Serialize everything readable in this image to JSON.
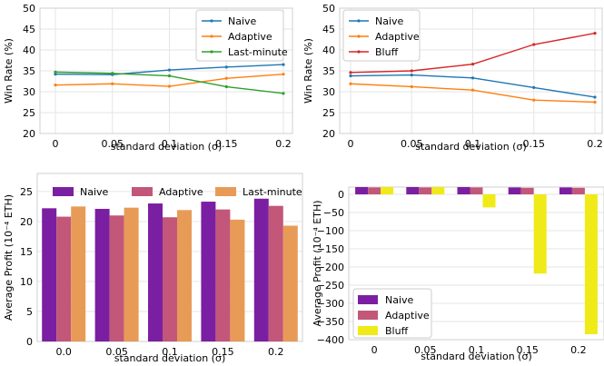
{
  "chart_data": [
    {
      "type": "line",
      "x": [
        "0",
        "0.05",
        "0.1",
        "0.15",
        "0.2"
      ],
      "xlabel": "standard deviation (σ)",
      "ylabel": "Win Rate (%)",
      "ylim": [
        20,
        50
      ],
      "yticks": [
        "20",
        "25",
        "30",
        "35",
        "40",
        "45",
        "50"
      ],
      "grid": true,
      "legend": "top-right",
      "series": [
        {
          "name": "Naive",
          "color": "#1f77b4",
          "values": [
            34.2,
            34.1,
            35.2,
            35.9,
            36.5
          ]
        },
        {
          "name": "Adaptive",
          "color": "#ff7f0e",
          "values": [
            31.6,
            31.9,
            31.3,
            33.2,
            34.2
          ]
        },
        {
          "name": "Last-minute",
          "color": "#2ca02c",
          "values": [
            34.7,
            34.4,
            33.8,
            31.2,
            29.6
          ]
        }
      ]
    },
    {
      "type": "line",
      "x": [
        "0",
        "0.05",
        "0.1",
        "0.15",
        "0.2"
      ],
      "xlabel": "standard deviation (σ)",
      "ylabel": "Win Rate (%)",
      "ylim": [
        20,
        50
      ],
      "yticks": [
        "20",
        "25",
        "30",
        "35",
        "40",
        "45",
        "50"
      ],
      "grid": true,
      "legend": "top-left",
      "series": [
        {
          "name": "Naive",
          "color": "#1f77b4",
          "values": [
            33.8,
            34.0,
            33.3,
            31.0,
            28.7
          ]
        },
        {
          "name": "Adaptive",
          "color": "#ff7f0e",
          "values": [
            31.9,
            31.2,
            30.4,
            28.0,
            27.5
          ]
        },
        {
          "name": "Bluff",
          "color": "#d62728",
          "values": [
            34.6,
            35.0,
            36.6,
            41.3,
            44.0
          ]
        }
      ]
    },
    {
      "type": "bar",
      "categories": [
        "0.0",
        "0.05",
        "0.1",
        "0.15",
        "0.2"
      ],
      "xlabel": "standard deviation (σ)",
      "ylabel": "Average Profit (10⁻⁴ ETH)",
      "ylim": [
        0,
        28
      ],
      "yticks": [
        "0",
        "5",
        "10",
        "15",
        "20",
        "25"
      ],
      "grid": true,
      "legend": "top",
      "series": [
        {
          "name": "Naive",
          "color": "#7b1fa2",
          "values": [
            22.2,
            22.1,
            23.0,
            23.3,
            23.8
          ]
        },
        {
          "name": "Adaptive",
          "color": "#c2577a",
          "values": [
            20.8,
            21.0,
            20.7,
            22.0,
            22.6
          ]
        },
        {
          "name": "Last-minute",
          "color": "#e89b57",
          "values": [
            22.5,
            22.3,
            21.9,
            20.3,
            19.3
          ]
        }
      ]
    },
    {
      "type": "bar",
      "categories": [
        "0",
        "0.05",
        "0.1",
        "0.15",
        "0.2"
      ],
      "xlabel": "standard deviation (σ)",
      "ylabel": "Average Profit (10⁻⁴ ETH)",
      "ylim": [
        -400,
        20
      ],
      "yticks": [
        "0",
        "−50",
        "−100",
        "−150",
        "−200",
        "−250",
        "−300",
        "−350",
        "−400"
      ],
      "grid": true,
      "legend": "bottom-left",
      "series": [
        {
          "name": "Naive",
          "color": "#7b1fa2",
          "values": [
            20,
            20,
            20,
            19,
            19
          ]
        },
        {
          "name": "Adaptive",
          "color": "#c2577a",
          "values": [
            19,
            19,
            19,
            18,
            18
          ]
        },
        {
          "name": "Bluff",
          "color": "#f0ea18",
          "values": [
            20,
            20,
            -36,
            -218,
            -385
          ]
        }
      ]
    }
  ]
}
